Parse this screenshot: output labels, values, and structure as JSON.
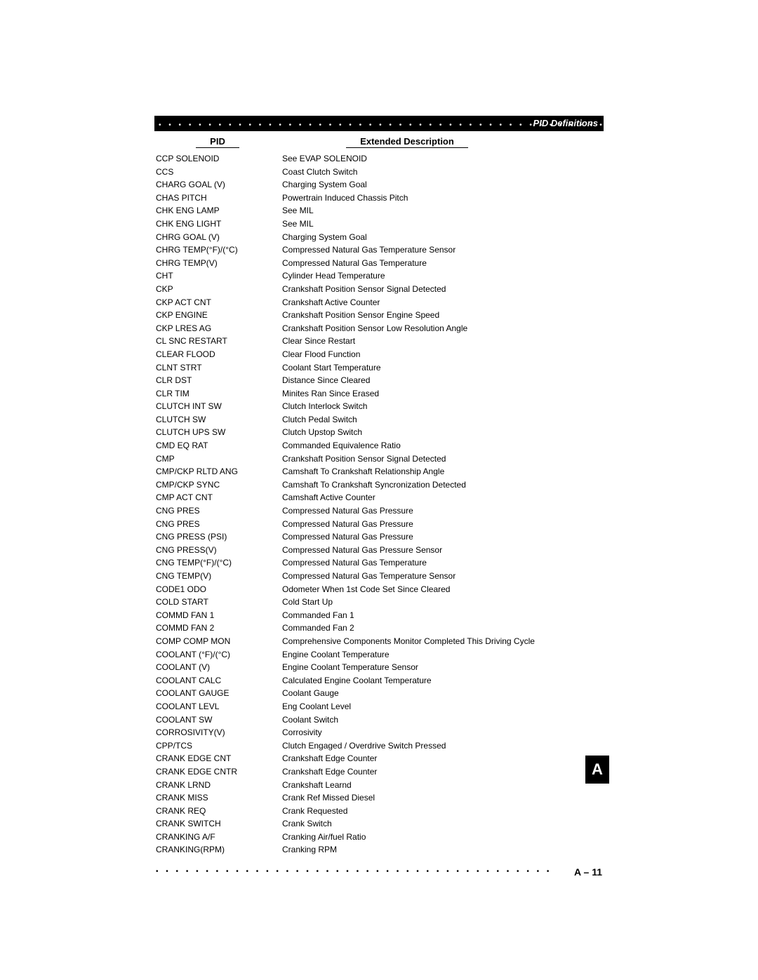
{
  "header": {
    "title": "PID Definitions"
  },
  "columns": {
    "pid": "PID",
    "desc": "Extended Description"
  },
  "rows": [
    {
      "pid": "CCP SOLENOID",
      "desc": "See EVAP SOLENOID"
    },
    {
      "pid": "CCS",
      "desc": "Coast Clutch Switch"
    },
    {
      "pid": "CHARG GOAL (V)",
      "desc": "Charging System Goal"
    },
    {
      "pid": "CHAS PITCH",
      "desc": "Powertrain Induced Chassis Pitch"
    },
    {
      "pid": "CHK ENG LAMP",
      "desc": "See MIL"
    },
    {
      "pid": "CHK ENG LIGHT",
      "desc": "See MIL"
    },
    {
      "pid": "CHRG GOAL (V)",
      "desc": "Charging System Goal"
    },
    {
      "pid": "CHRG TEMP(°F)/(°C)",
      "desc": "Compressed Natural Gas Temperature Sensor"
    },
    {
      "pid": "CHRG TEMP(V)",
      "desc": "Compressed Natural Gas Temperature"
    },
    {
      "pid": "CHT",
      "desc": "Cylinder Head Temperature"
    },
    {
      "pid": "CKP",
      "desc": "Crankshaft Position Sensor Signal Detected"
    },
    {
      "pid": "CKP ACT CNT",
      "desc": "Crankshaft Active Counter"
    },
    {
      "pid": "CKP ENGINE",
      "desc": "Crankshaft Position Sensor Engine Speed"
    },
    {
      "pid": "CKP LRES AG",
      "desc": "Crankshaft Position Sensor Low Resolution Angle"
    },
    {
      "pid": "CL SNC RESTART",
      "desc": "Clear Since Restart"
    },
    {
      "pid": "CLEAR FLOOD",
      "desc": "Clear Flood Function"
    },
    {
      "pid": "CLNT STRT",
      "desc": "Coolant Start Temperature"
    },
    {
      "pid": "CLR DST",
      "desc": "Distance Since Cleared"
    },
    {
      "pid": "CLR TIM",
      "desc": "Minites Ran Since Erased"
    },
    {
      "pid": "CLUTCH INT SW",
      "desc": "Clutch Interlock Switch"
    },
    {
      "pid": "CLUTCH SW",
      "desc": "Clutch Pedal Switch"
    },
    {
      "pid": "CLUTCH UPS SW",
      "desc": "Clutch Upstop Switch"
    },
    {
      "pid": "CMD EQ RAT",
      "desc": "Commanded Equivalence Ratio"
    },
    {
      "pid": "CMP",
      "desc": "Crankshaft Position Sensor Signal Detected"
    },
    {
      "pid": "CMP/CKP RLTD ANG",
      "desc": "Camshaft To Crankshaft Relationship Angle"
    },
    {
      "pid": "CMP/CKP SYNC",
      "desc": "Camshaft To Crankshaft Syncronization Detected"
    },
    {
      "pid": "CMP ACT CNT",
      "desc": "Camshaft Active Counter"
    },
    {
      "pid": "CNG PRES",
      "desc": "Compressed Natural Gas Pressure"
    },
    {
      "pid": "CNG PRES",
      "desc": "Compressed Natural Gas Pressure"
    },
    {
      "pid": "CNG PRESS (PSI)",
      "desc": "Compressed Natural Gas Pressure"
    },
    {
      "pid": "CNG PRESS(V)",
      "desc": "Compressed Natural Gas Pressure Sensor"
    },
    {
      "pid": "CNG TEMP(°F)/(°C)",
      "desc": "Compressed Natural Gas Temperature"
    },
    {
      "pid": "CNG TEMP(V)",
      "desc": "Compressed Natural Gas Temperature Sensor"
    },
    {
      "pid": "CODE1 ODO",
      "desc": "Odometer When 1st Code Set Since Cleared"
    },
    {
      "pid": "COLD START",
      "desc": "Cold Start Up"
    },
    {
      "pid": "COMMD FAN 1",
      "desc": "Commanded Fan 1"
    },
    {
      "pid": "COMMD FAN 2",
      "desc": "Commanded Fan 2"
    },
    {
      "pid": "COMP COMP MON",
      "desc": "Comprehensive Components Monitor Completed This Driving Cycle"
    },
    {
      "pid": "COOLANT (°F)/(°C)",
      "desc": "Engine Coolant Temperature"
    },
    {
      "pid": "COOLANT (V)",
      "desc": "Engine Coolant Temperature Sensor"
    },
    {
      "pid": "COOLANT CALC",
      "desc": "Calculated Engine Coolant Temperature"
    },
    {
      "pid": "COOLANT GAUGE",
      "desc": "Coolant Gauge"
    },
    {
      "pid": "COOLANT LEVL",
      "desc": "Eng Coolant Level"
    },
    {
      "pid": "COOLANT SW",
      "desc": "Coolant Switch"
    },
    {
      "pid": "CORROSIVITY(V)",
      "desc": "Corrosivity"
    },
    {
      "pid": "CPP/TCS",
      "desc": "Clutch Engaged / Overdrive Switch Pressed"
    },
    {
      "pid": "CRANK EDGE CNT",
      "desc": "Crankshaft Edge Counter"
    },
    {
      "pid": "CRANK EDGE CNTR",
      "desc": "Crankshaft Edge Counter"
    },
    {
      "pid": "CRANK LRND",
      "desc": "Crankshaft Learnd"
    },
    {
      "pid": "CRANK MISS",
      "desc": "Crank Ref Missed Diesel"
    },
    {
      "pid": "CRANK REQ",
      "desc": "Crank Requested"
    },
    {
      "pid": "CRANK SWITCH",
      "desc": "Crank Switch"
    },
    {
      "pid": "CRANKING A/F",
      "desc": "Cranking Air/fuel Ratio"
    },
    {
      "pid": "CRANKING(RPM)",
      "desc": "Cranking RPM"
    }
  ],
  "footer": {
    "page": "A – 11"
  },
  "sidetab": "A",
  "style": {
    "page_bg": "#ffffff",
    "header_bg": "#000000",
    "header_text": "#ffffff",
    "body_text": "#000000",
    "font_family": "Arial, Helvetica, sans-serif",
    "row_fontsize": 12,
    "header_fontsize": 13,
    "sidetab_bg": "#000000",
    "sidetab_text": "#ffffff"
  }
}
